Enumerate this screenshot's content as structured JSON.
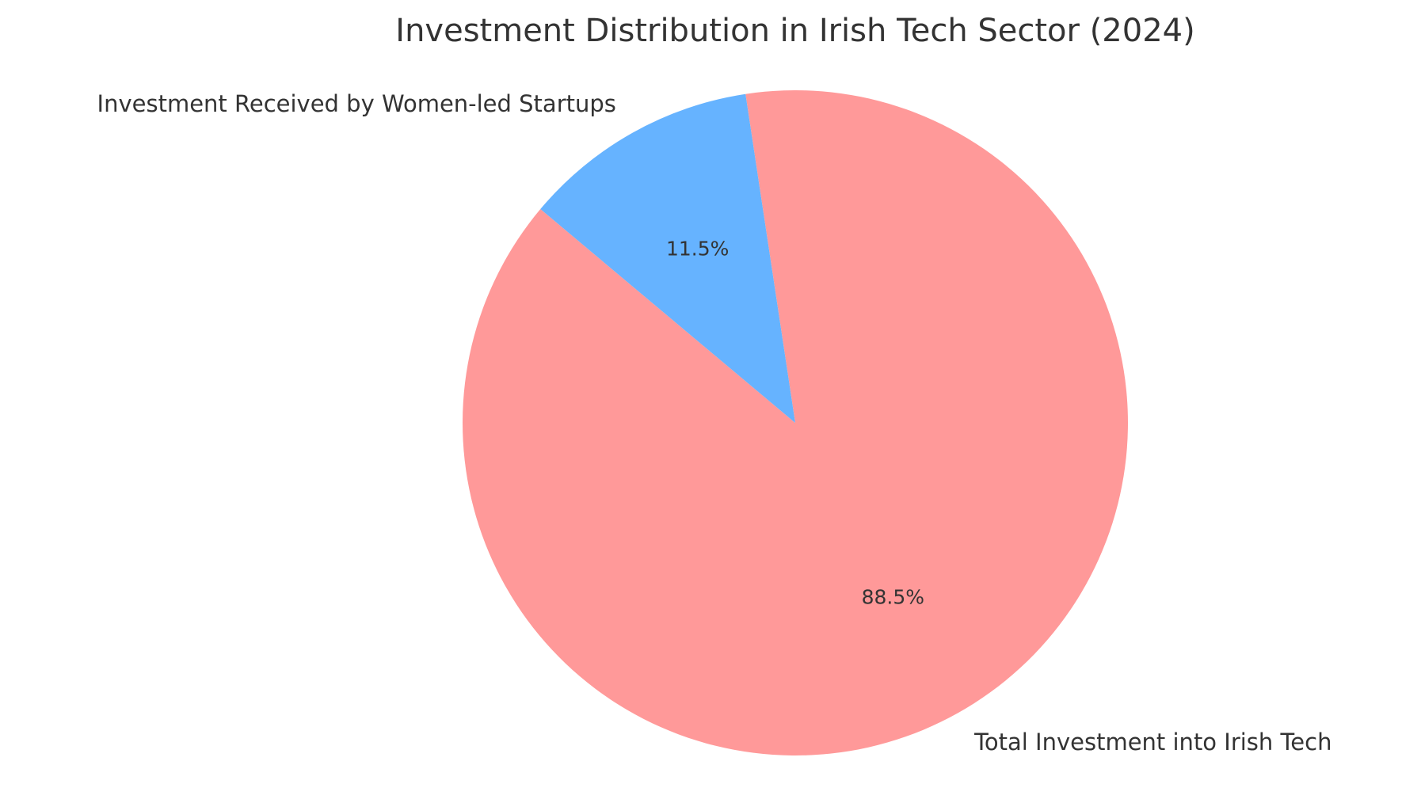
{
  "chart_data": {
    "type": "pie",
    "title": "Investment Distribution in Irish Tech Sector (2024)",
    "slices": [
      {
        "label": "Total Investment into Irish Tech",
        "value": 88.5,
        "pct_label": "88.5%",
        "color": "#ff9999"
      },
      {
        "label": "Investment Received by Women-led Startups",
        "value": 11.5,
        "pct_label": "11.5%",
        "color": "#66b3ff"
      }
    ],
    "start_angle_deg": 140,
    "direction": "counterclockwise",
    "legend": "none"
  }
}
